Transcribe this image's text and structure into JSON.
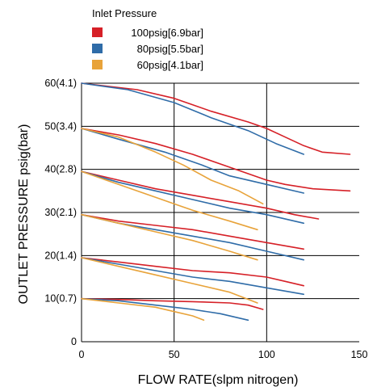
{
  "chart_data": {
    "type": "line",
    "title": "",
    "xlabel": "FLOW RATE(slpm nitrogen)",
    "ylabel": "OUTLET PRESSURE psig(bar)",
    "xlim": [
      0,
      150
    ],
    "ylim": [
      0,
      60
    ],
    "x_ticks": [
      {
        "value": 0,
        "label": "0"
      },
      {
        "value": 50,
        "label": "50"
      },
      {
        "value": 100,
        "label": "100"
      },
      {
        "value": 150,
        "label": "150"
      }
    ],
    "y_ticks": [
      {
        "value": 0,
        "label": "0"
      },
      {
        "value": 10,
        "label": "10(0.7)"
      },
      {
        "value": 20,
        "label": "20(1.4)"
      },
      {
        "value": 30,
        "label": "30(2.1)"
      },
      {
        "value": 40,
        "label": "40(2.8)"
      },
      {
        "value": 50,
        "label": "50(3.4)"
      },
      {
        "value": 60,
        "label": "60(4.1)"
      }
    ],
    "grid": true,
    "legend": {
      "title": "Inlet Pressure",
      "placement": "top-left",
      "entries": [
        {
          "label": "100psig[6.9bar]",
          "color": "#d62027"
        },
        {
          "label": "80psig[5.5bar]",
          "color": "#2f6ca8"
        },
        {
          "label": "60psig[4.1bar]",
          "color": "#e8a33a"
        }
      ]
    },
    "series": [
      {
        "inlet": "100psig[6.9bar]",
        "color": "#d62027",
        "set_point": 60,
        "points": [
          [
            0,
            60
          ],
          [
            30,
            58.5
          ],
          [
            50,
            56.5
          ],
          [
            70,
            53.5
          ],
          [
            90,
            51
          ],
          [
            100,
            49.5
          ],
          [
            110,
            47.5
          ],
          [
            120,
            45.5
          ],
          [
            130,
            44
          ],
          [
            145,
            43.5
          ]
        ]
      },
      {
        "inlet": "80psig[5.5bar]",
        "color": "#2f6ca8",
        "set_point": 60,
        "points": [
          [
            0,
            60
          ],
          [
            25,
            58.5
          ],
          [
            50,
            55.5
          ],
          [
            70,
            52
          ],
          [
            90,
            49
          ],
          [
            105,
            46
          ],
          [
            120,
            43.5
          ]
        ]
      },
      {
        "inlet": "100psig[6.9bar]",
        "color": "#d62027",
        "set_point": 50,
        "points": [
          [
            0,
            49.5
          ],
          [
            20,
            48
          ],
          [
            40,
            46
          ],
          [
            60,
            43.5
          ],
          [
            80,
            40.5
          ],
          [
            100,
            37.5
          ],
          [
            110,
            36.5
          ],
          [
            125,
            35.5
          ],
          [
            145,
            35
          ]
        ]
      },
      {
        "inlet": "80psig[5.5bar]",
        "color": "#2f6ca8",
        "set_point": 50,
        "points": [
          [
            0,
            49.5
          ],
          [
            20,
            47
          ],
          [
            45,
            44
          ],
          [
            65,
            41
          ],
          [
            80,
            38.5
          ],
          [
            100,
            36.5
          ],
          [
            120,
            34.5
          ]
        ]
      },
      {
        "inlet": "60psig[4.1bar]",
        "color": "#e8a33a",
        "set_point": 50,
        "points": [
          [
            0,
            49.5
          ],
          [
            20,
            47.5
          ],
          [
            40,
            44
          ],
          [
            55,
            41
          ],
          [
            70,
            37.5
          ],
          [
            85,
            35
          ],
          [
            98,
            32
          ]
        ]
      },
      {
        "inlet": "100psig[6.9bar]",
        "color": "#d62027",
        "set_point": 40,
        "points": [
          [
            0,
            39.5
          ],
          [
            20,
            37.5
          ],
          [
            40,
            35.5
          ],
          [
            60,
            34
          ],
          [
            80,
            32.5
          ],
          [
            100,
            31
          ],
          [
            115,
            29.5
          ],
          [
            128,
            28.5
          ]
        ]
      },
      {
        "inlet": "80psig[5.5bar]",
        "color": "#2f6ca8",
        "set_point": 40,
        "points": [
          [
            0,
            39.5
          ],
          [
            20,
            37
          ],
          [
            40,
            35
          ],
          [
            60,
            33
          ],
          [
            80,
            31
          ],
          [
            100,
            29.5
          ],
          [
            120,
            27.5
          ]
        ]
      },
      {
        "inlet": "60psig[4.1bar]",
        "color": "#e8a33a",
        "set_point": 40,
        "points": [
          [
            0,
            39.5
          ],
          [
            20,
            36.5
          ],
          [
            40,
            33.5
          ],
          [
            60,
            30.5
          ],
          [
            80,
            28
          ],
          [
            95,
            26
          ]
        ]
      },
      {
        "inlet": "100psig[6.9bar]",
        "color": "#d62027",
        "set_point": 30,
        "points": [
          [
            0,
            29.5
          ],
          [
            20,
            28
          ],
          [
            40,
            27
          ],
          [
            60,
            26
          ],
          [
            80,
            24.5
          ],
          [
            100,
            23
          ],
          [
            120,
            21.5
          ]
        ]
      },
      {
        "inlet": "80psig[5.5bar]",
        "color": "#2f6ca8",
        "set_point": 30,
        "points": [
          [
            0,
            29.5
          ],
          [
            20,
            27.5
          ],
          [
            40,
            26
          ],
          [
            60,
            24.5
          ],
          [
            80,
            23
          ],
          [
            100,
            21
          ],
          [
            120,
            19
          ]
        ]
      },
      {
        "inlet": "60psig[4.1bar]",
        "color": "#e8a33a",
        "set_point": 30,
        "points": [
          [
            0,
            29.5
          ],
          [
            20,
            27.5
          ],
          [
            40,
            25.5
          ],
          [
            60,
            23.5
          ],
          [
            80,
            21
          ],
          [
            95,
            19
          ]
        ]
      },
      {
        "inlet": "100psig[6.9bar]",
        "color": "#d62027",
        "set_point": 20,
        "points": [
          [
            0,
            19.5
          ],
          [
            20,
            18.5
          ],
          [
            40,
            17.5
          ],
          [
            60,
            16.5
          ],
          [
            80,
            16
          ],
          [
            100,
            15
          ],
          [
            110,
            14
          ],
          [
            120,
            13
          ]
        ]
      },
      {
        "inlet": "80psig[5.5bar]",
        "color": "#2f6ca8",
        "set_point": 20,
        "points": [
          [
            0,
            19.5
          ],
          [
            20,
            18
          ],
          [
            40,
            16.5
          ],
          [
            60,
            15
          ],
          [
            80,
            14
          ],
          [
            100,
            12.5
          ],
          [
            120,
            11
          ]
        ]
      },
      {
        "inlet": "60psig[4.1bar]",
        "color": "#e8a33a",
        "set_point": 20,
        "points": [
          [
            0,
            19.5
          ],
          [
            20,
            17.5
          ],
          [
            40,
            15.5
          ],
          [
            60,
            13.5
          ],
          [
            80,
            11.5
          ],
          [
            95,
            9
          ]
        ]
      },
      {
        "inlet": "100psig[6.9bar]",
        "color": "#d62027",
        "set_point": 10,
        "points": [
          [
            0,
            10
          ],
          [
            20,
            9.8
          ],
          [
            40,
            9.5
          ],
          [
            60,
            9.3
          ],
          [
            80,
            9
          ],
          [
            90,
            8.5
          ],
          [
            98,
            7.5
          ]
        ]
      },
      {
        "inlet": "80psig[5.5bar]",
        "color": "#2f6ca8",
        "set_point": 10,
        "points": [
          [
            0,
            10
          ],
          [
            20,
            9.5
          ],
          [
            40,
            8.5
          ],
          [
            60,
            7.5
          ],
          [
            75,
            6.5
          ],
          [
            90,
            5
          ]
        ]
      },
      {
        "inlet": "60psig[4.1bar]",
        "color": "#e8a33a",
        "set_point": 10,
        "points": [
          [
            0,
            10
          ],
          [
            20,
            9
          ],
          [
            40,
            8
          ],
          [
            50,
            7
          ],
          [
            60,
            6
          ],
          [
            66,
            5
          ]
        ]
      }
    ]
  }
}
